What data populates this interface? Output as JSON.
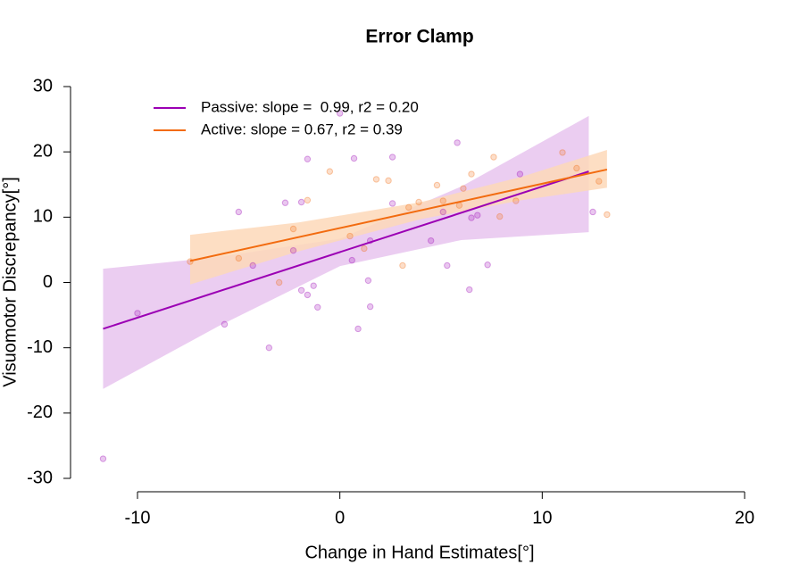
{
  "chart_data": {
    "type": "scatter",
    "title": "Error Clamp",
    "xlabel": "Change in Hand Estimates[°]",
    "ylabel": "Visuomotor Discrepancy[°]",
    "xlim": [
      -10,
      20
    ],
    "xticks": [
      -10,
      0,
      10,
      20
    ],
    "ylim": [
      -30,
      30
    ],
    "yticks": [
      -30,
      -20,
      -10,
      0,
      10,
      20,
      30
    ],
    "legend": "top-left",
    "series": [
      {
        "name": "Passive: slope =  0.99, r2 = 0.20",
        "color": "#9b00b4",
        "band_color": "#e8c4ee",
        "x": [
          -11.7,
          -10.0,
          -5.7,
          -5.0,
          -4.3,
          -3.5,
          -2.7,
          -2.3,
          -1.9,
          -1.9,
          -1.6,
          -1.6,
          -1.3,
          -1.1,
          0.0,
          0.6,
          0.7,
          0.9,
          1.4,
          1.5,
          1.5,
          2.6,
          2.6,
          4.5,
          5.1,
          5.3,
          5.8,
          6.4,
          6.5,
          6.8,
          7.3,
          8.9,
          12.5
        ],
        "values": [
          -27.0,
          -4.7,
          -6.4,
          10.8,
          2.6,
          -10.0,
          12.2,
          4.9,
          -1.2,
          12.3,
          18.9,
          -1.9,
          -0.5,
          -3.8,
          25.9,
          3.4,
          19.0,
          -7.1,
          0.3,
          -3.7,
          6.4,
          19.2,
          12.1,
          6.4,
          10.8,
          2.6,
          21.4,
          -1.1,
          9.9,
          10.3,
          2.7,
          16.6,
          10.8
        ],
        "fit_x": [
          -11.7,
          12.3
        ],
        "fit_values": [
          -7.1,
          17.0
        ],
        "band_x": [
          -11.7,
          -6,
          0,
          6,
          12.3
        ],
        "band_lower": [
          -16.3,
          -6.7,
          2.5,
          6.5,
          7.7
        ],
        "band_upper": [
          2.1,
          3.9,
          6.7,
          14.7,
          25.5
        ]
      },
      {
        "name": "Active: slope = 0.67, r2 = 0.39",
        "color": "#f26b0f",
        "band_color": "#fdd8b8",
        "x": [
          -7.4,
          -5.0,
          -3.0,
          -2.3,
          -1.6,
          -0.5,
          0.5,
          1.2,
          1.8,
          2.4,
          3.1,
          3.4,
          3.9,
          4.8,
          5.1,
          5.9,
          6.1,
          6.5,
          7.6,
          7.9,
          8.7,
          11.0,
          11.7,
          12.8,
          13.2
        ],
        "values": [
          3.2,
          3.7,
          0.0,
          8.2,
          12.6,
          17.0,
          7.1,
          5.2,
          15.8,
          15.6,
          2.6,
          11.5,
          12.3,
          14.9,
          12.5,
          11.8,
          14.4,
          16.6,
          19.2,
          10.1,
          12.5,
          19.9,
          17.5,
          15.5,
          10.4
        ],
        "fit_x": [
          -7.4,
          13.2
        ],
        "fit_values": [
          3.3,
          17.3
        ],
        "band_x": [
          -7.4,
          -2,
          4,
          9,
          13.2
        ],
        "band_lower": [
          -0.3,
          4.8,
          9.7,
          12.6,
          14.5
        ],
        "band_upper": [
          7.3,
          9.2,
          12.3,
          16.2,
          20.3
        ]
      }
    ]
  }
}
